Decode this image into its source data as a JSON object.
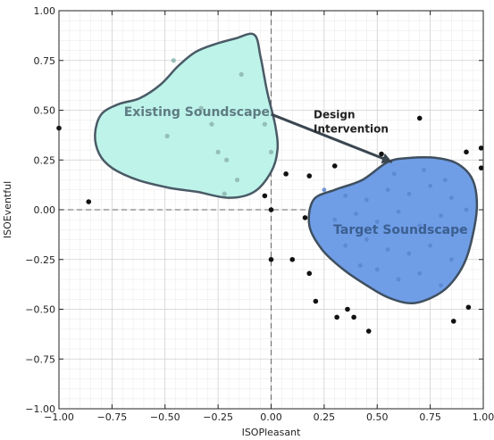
{
  "chart_data": {
    "type": "scatter",
    "xlabel": "ISOPleasant",
    "ylabel": "ISOEventful",
    "xlim": [
      -1.0,
      1.0
    ],
    "ylim": [
      -1.0,
      1.0
    ],
    "xticks": [
      "−1.00",
      "−0.75",
      "−0.50",
      "−0.25",
      "0.00",
      "0.25",
      "0.50",
      "0.75",
      "1.00"
    ],
    "yticks": [
      "−1.00",
      "−0.75",
      "−0.50",
      "−0.25",
      "0.00",
      "0.25",
      "0.50",
      "0.75",
      "1.00"
    ],
    "xtick_values": [
      -1.0,
      -0.75,
      -0.5,
      -0.25,
      0.0,
      0.25,
      0.5,
      0.75,
      1.0
    ],
    "ytick_values": [
      -1.0,
      -0.75,
      -0.5,
      -0.25,
      0.0,
      0.25,
      0.5,
      0.75,
      1.0
    ],
    "grid": true,
    "reference_lines": {
      "x": 0.0,
      "y": 0.0
    },
    "regions": [
      {
        "label": "Existing Soundscape",
        "fill": "#bdf3e9",
        "stroke": "#4a5a66",
        "label_color": "#5f7b83",
        "label_pos": [
          -0.35,
          0.47
        ],
        "outline": [
          [
            -0.08,
            0.88
          ],
          [
            -0.17,
            0.86
          ],
          [
            -0.27,
            0.83
          ],
          [
            -0.36,
            0.79
          ],
          [
            -0.44,
            0.72
          ],
          [
            -0.52,
            0.63
          ],
          [
            -0.62,
            0.56
          ],
          [
            -0.72,
            0.53
          ],
          [
            -0.8,
            0.48
          ],
          [
            -0.83,
            0.38
          ],
          [
            -0.81,
            0.28
          ],
          [
            -0.75,
            0.21
          ],
          [
            -0.63,
            0.15
          ],
          [
            -0.48,
            0.11
          ],
          [
            -0.35,
            0.09
          ],
          [
            -0.2,
            0.06
          ],
          [
            -0.08,
            0.09
          ],
          [
            0.0,
            0.19
          ],
          [
            0.03,
            0.3
          ],
          [
            0.02,
            0.42
          ],
          [
            -0.02,
            0.6
          ],
          [
            -0.05,
            0.77
          ]
        ]
      },
      {
        "label": "Target Soundscape",
        "fill": "#6f9de6",
        "stroke": "#3f4f5f",
        "label_color": "#3b5f90",
        "label_pos": [
          0.61,
          -0.12
        ],
        "outline": [
          [
            0.55,
            0.24
          ],
          [
            0.65,
            0.26
          ],
          [
            0.78,
            0.26
          ],
          [
            0.88,
            0.23
          ],
          [
            0.95,
            0.15
          ],
          [
            0.97,
            0.02
          ],
          [
            0.95,
            -0.13
          ],
          [
            0.91,
            -0.27
          ],
          [
            0.84,
            -0.38
          ],
          [
            0.76,
            -0.44
          ],
          [
            0.66,
            -0.47
          ],
          [
            0.55,
            -0.44
          ],
          [
            0.45,
            -0.38
          ],
          [
            0.34,
            -0.3
          ],
          [
            0.24,
            -0.2
          ],
          [
            0.18,
            -0.08
          ],
          [
            0.2,
            0.05
          ],
          [
            0.3,
            0.1
          ],
          [
            0.43,
            0.15
          ]
        ]
      }
    ],
    "annotation": {
      "text_lines": [
        "Design",
        "Intervention"
      ],
      "text_pos": [
        0.2,
        0.46
      ],
      "arrow_start": [
        0.0,
        0.48
      ],
      "arrow_end": [
        0.57,
        0.24
      ]
    },
    "points_outside": [
      [
        -1.0,
        0.41
      ],
      [
        -0.86,
        0.04
      ],
      [
        0.7,
        0.46
      ],
      [
        0.52,
        0.28
      ],
      [
        0.99,
        0.31
      ],
      [
        0.99,
        0.21
      ],
      [
        0.92,
        0.29
      ],
      [
        0.07,
        0.18
      ],
      [
        0.18,
        0.17
      ],
      [
        0.3,
        0.22
      ],
      [
        -0.03,
        0.07
      ],
      [
        0.0,
        0.0
      ],
      [
        0.0,
        -0.25
      ],
      [
        0.1,
        -0.25
      ],
      [
        0.16,
        -0.04
      ],
      [
        0.18,
        -0.32
      ],
      [
        0.21,
        -0.46
      ],
      [
        0.31,
        -0.54
      ],
      [
        0.36,
        -0.5
      ],
      [
        0.39,
        -0.54
      ],
      [
        0.46,
        -0.61
      ],
      [
        0.86,
        -0.56
      ],
      [
        0.93,
        -0.49
      ]
    ],
    "points_inside_existing": [
      [
        -0.46,
        0.75
      ],
      [
        -0.14,
        0.68
      ],
      [
        -0.33,
        0.51
      ],
      [
        -0.49,
        0.37
      ],
      [
        -0.28,
        0.43
      ],
      [
        -0.03,
        0.43
      ],
      [
        -0.25,
        0.29
      ],
      [
        -0.21,
        0.25
      ],
      [
        -0.16,
        0.15
      ],
      [
        -0.22,
        0.08
      ],
      [
        0.0,
        0.29
      ]
    ],
    "points_inside_target": [
      [
        0.25,
        0.1
      ],
      [
        0.35,
        0.07
      ],
      [
        0.45,
        0.05
      ],
      [
        0.55,
        0.1
      ],
      [
        0.65,
        0.08
      ],
      [
        0.75,
        0.12
      ],
      [
        0.85,
        0.06
      ],
      [
        0.3,
        -0.05
      ],
      [
        0.4,
        -0.02
      ],
      [
        0.5,
        -0.06
      ],
      [
        0.6,
        -0.01
      ],
      [
        0.7,
        -0.08
      ],
      [
        0.8,
        -0.03
      ],
      [
        0.9,
        -0.1
      ],
      [
        0.35,
        -0.18
      ],
      [
        0.45,
        -0.15
      ],
      [
        0.55,
        -0.2
      ],
      [
        0.65,
        -0.22
      ],
      [
        0.75,
        -0.18
      ],
      [
        0.85,
        -0.25
      ],
      [
        0.5,
        -0.3
      ],
      [
        0.6,
        -0.35
      ],
      [
        0.7,
        -0.32
      ],
      [
        0.8,
        -0.38
      ],
      [
        0.42,
        -0.28
      ],
      [
        0.92,
        0.0
      ],
      [
        0.58,
        0.18
      ],
      [
        0.72,
        0.2
      ],
      [
        0.82,
        0.15
      ]
    ]
  }
}
